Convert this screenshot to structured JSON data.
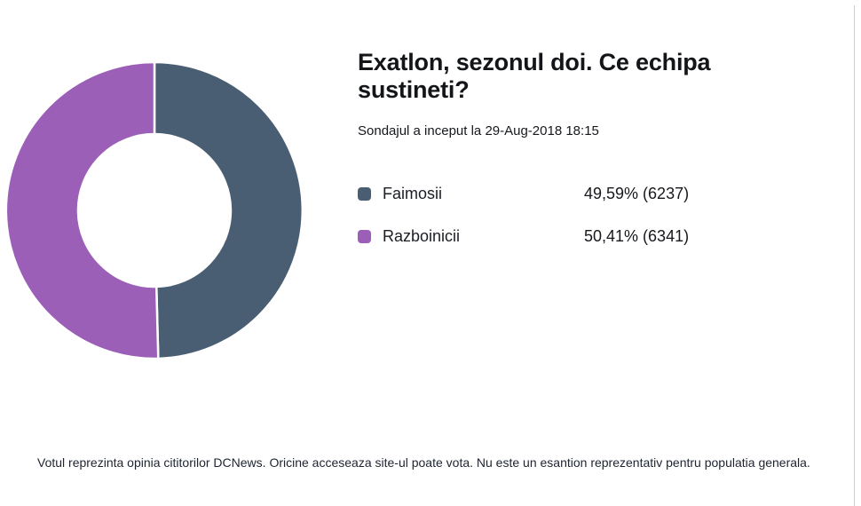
{
  "page": {
    "right_border_color": "#cfcfcf",
    "background": "#ffffff"
  },
  "poll": {
    "title": "Exatlon, sezonul doi. Ce echipa sustineti?",
    "subtitle": "Sondajul a inceput la 29-Aug-2018 18:15",
    "options": [
      {
        "label": "Faimosii",
        "value_text": "49,59% (6237)",
        "percent": 49.59,
        "votes": 6237,
        "color": "#4a5e73"
      },
      {
        "label": "Razboinicii",
        "value_text": "50,41% (6341)",
        "percent": 50.41,
        "votes": 6341,
        "color": "#9c5fb8"
      }
    ],
    "footer": "Votul reprezinta opinia cititorilor DCNews. Oricine acceseaza site-ul poate vota. Nu este un esantion reprezentativ pentru populatia generala."
  },
  "chart_data": {
    "type": "pie",
    "subtype": "donut",
    "title": "Exatlon, sezonul doi. Ce echipa sustineti?",
    "categories": [
      "Faimosii",
      "Razboinicii"
    ],
    "values": [
      49.59,
      50.41
    ],
    "counts": [
      6237,
      6341
    ],
    "colors": [
      "#4a5e73",
      "#9c5fb8"
    ],
    "start_angle_deg": 0,
    "direction": "clockwise",
    "inner_radius_ratio": 0.51,
    "slice_gap_color": "#ffffff",
    "legend_position": "right"
  }
}
